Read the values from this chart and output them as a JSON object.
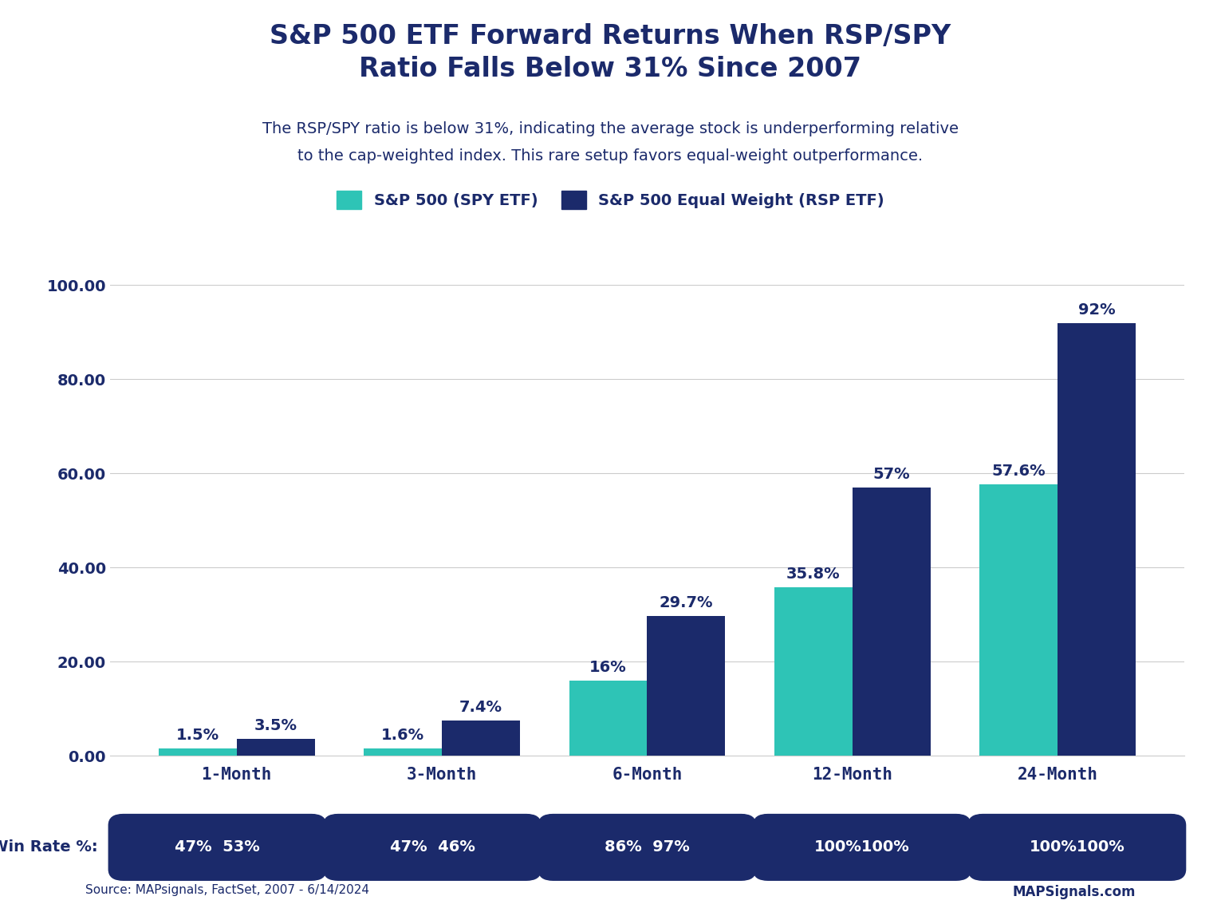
{
  "title": "S&P 500 ETF Forward Returns When RSP/SPY\nRatio Falls Below 31% Since 2007",
  "subtitle_line1": "The RSP/SPY ratio is below 31%, indicating the average stock is underperforming relative",
  "subtitle_line2": "to the cap-weighted index. This rare setup favors equal-weight outperformance.",
  "categories": [
    "1-Month",
    "3-Month",
    "6-Month",
    "12-Month",
    "24-Month"
  ],
  "spy_values": [
    1.5,
    1.6,
    16.0,
    35.8,
    57.6
  ],
  "rsp_values": [
    3.5,
    7.4,
    29.7,
    57.0,
    92.0
  ],
  "spy_labels": [
    "1.5%",
    "1.6%",
    "16%",
    "35.8%",
    "57.6%"
  ],
  "rsp_labels": [
    "3.5%",
    "7.4%",
    "29.7%",
    "57%",
    "92%"
  ],
  "spy_color": "#2EC4B6",
  "rsp_color": "#1B2A6B",
  "spy_legend": "S&P 500 (SPY ETF)",
  "rsp_legend": "S&P 500 Equal Weight (RSP ETF)",
  "ylim": [
    0,
    110
  ],
  "yticks": [
    0,
    20,
    40,
    60,
    80,
    100
  ],
  "ytick_labels": [
    "0.00",
    "20.00",
    "40.00",
    "60.00",
    "80.00",
    "100.00"
  ],
  "win_rate_spy": [
    "47%",
    "47%",
    "86%",
    "100%",
    "100%"
  ],
  "win_rate_rsp": [
    "53%",
    "46%",
    "97%",
    "100%",
    "100%"
  ],
  "win_rate_texts": [
    "47%  53%",
    "47%  46%",
    "86%  97%",
    "100%100%",
    "100%100%"
  ],
  "win_rate_label": "Win Rate %:",
  "source_text": "Source: MAPsignals, FactSet, 2007 - 6/14/2024",
  "title_color": "#1B2A6B",
  "subtitle_color": "#1B2A6B",
  "axis_label_color": "#1B2A6B",
  "win_rate_bg": "#1B2A6B",
  "win_rate_text_color": "#FFFFFF",
  "background_color": "#FFFFFF",
  "grid_color": "#CCCCCC",
  "bar_width": 0.38,
  "title_fontsize": 24,
  "subtitle_fontsize": 14,
  "legend_fontsize": 14,
  "tick_fontsize": 14,
  "label_fontsize": 13,
  "win_rate_fontsize": 14
}
